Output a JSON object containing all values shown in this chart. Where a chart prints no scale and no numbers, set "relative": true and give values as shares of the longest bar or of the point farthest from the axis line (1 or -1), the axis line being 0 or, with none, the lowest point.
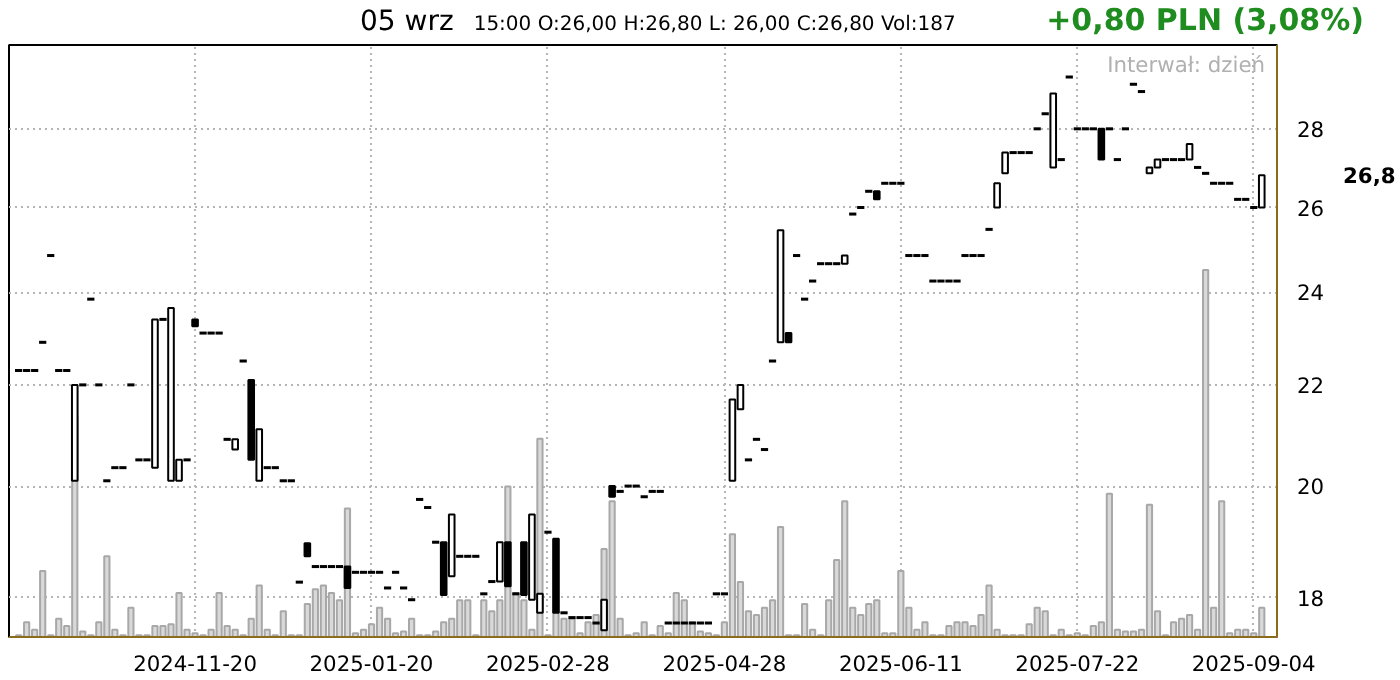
{
  "chart_data": [
    {
      "type": "candlestick",
      "categories": [
        null,
        null,
        null,
        null,
        null,
        null,
        null,
        null,
        null,
        null,
        null,
        null,
        null,
        null,
        null,
        null,
        null,
        null,
        null,
        null,
        null,
        null,
        "2024-11-20",
        null,
        null,
        null,
        null,
        null,
        null,
        null,
        null,
        null,
        null,
        null,
        null,
        null,
        null,
        null,
        null,
        null,
        null,
        null,
        null,
        null,
        "2025-01-20",
        null,
        null,
        null,
        null,
        null,
        null,
        null,
        null,
        null,
        null,
        null,
        null,
        null,
        null,
        null,
        null,
        null,
        null,
        null,
        null,
        null,
        "2025-02-28",
        null,
        null,
        null,
        null,
        null,
        null,
        null,
        null,
        null,
        null,
        null,
        null,
        null,
        null,
        null,
        null,
        null,
        null,
        null,
        null,
        null,
        "2025-04-28",
        null,
        null,
        null,
        null,
        null,
        null,
        null,
        null,
        null,
        null,
        null,
        null,
        null,
        null,
        null,
        null,
        null,
        null,
        null,
        null,
        null,
        "2025-06-11",
        null,
        null,
        null,
        null,
        null,
        null,
        null,
        null,
        null,
        null,
        null,
        null,
        null,
        null,
        null,
        null,
        null,
        null,
        null,
        null,
        null,
        "2025-07-22",
        null,
        null,
        null,
        null,
        null,
        null,
        null,
        null,
        null,
        null,
        null,
        null,
        null,
        null,
        null,
        null,
        null,
        null,
        null,
        null,
        null,
        "2025-09-04",
        null
      ],
      "ohlc": [
        [
          22.3,
          22.3,
          22.3,
          22.3
        ],
        [
          22.3,
          22.3,
          22.3,
          22.3
        ],
        [
          22.3,
          22.3,
          22.3,
          22.3
        ],
        [
          22.9,
          22.9,
          22.9,
          22.9
        ],
        [
          24.85,
          24.85,
          24.85,
          24.85
        ],
        [
          22.3,
          22.3,
          22.3,
          22.3
        ],
        [
          22.3,
          22.3,
          22.3,
          22.3
        ],
        [
          20.1,
          22.0,
          20.1,
          22.0
        ],
        [
          22.0,
          22.0,
          22.0,
          22.0
        ],
        [
          23.85,
          23.85,
          23.85,
          23.85
        ],
        [
          22.0,
          22.0,
          22.0,
          22.0
        ],
        [
          20.1,
          20.1,
          20.1,
          20.1
        ],
        [
          20.35,
          20.35,
          20.35,
          20.35
        ],
        [
          20.35,
          20.35,
          20.35,
          20.35
        ],
        [
          22.0,
          22.0,
          22.0,
          22.0
        ],
        [
          20.5,
          20.5,
          20.5,
          20.5
        ],
        [
          20.5,
          20.5,
          20.5,
          20.5
        ],
        [
          20.35,
          23.4,
          20.35,
          23.4
        ],
        [
          23.4,
          23.4,
          23.4,
          23.4
        ],
        [
          20.1,
          23.65,
          20.1,
          23.65
        ],
        [
          20.1,
          20.5,
          20.1,
          20.5
        ],
        [
          20.5,
          20.5,
          20.5,
          20.5
        ],
        [
          23.4,
          23.4,
          23.25,
          23.25
        ],
        [
          23.1,
          23.1,
          23.1,
          23.1
        ],
        [
          23.1,
          23.1,
          23.1,
          23.1
        ],
        [
          23.1,
          23.1,
          23.1,
          23.1
        ],
        [
          20.9,
          20.9,
          20.9,
          20.9
        ],
        [
          20.7,
          20.9,
          20.7,
          20.9
        ],
        [
          22.5,
          22.5,
          22.5,
          22.5
        ],
        [
          22.1,
          22.1,
          20.5,
          20.5
        ],
        [
          20.1,
          21.1,
          20.1,
          21.1
        ],
        [
          20.35,
          20.35,
          20.35,
          20.35
        ],
        [
          20.35,
          20.35,
          20.35,
          20.35
        ],
        [
          20.1,
          20.1,
          20.1,
          20.1
        ],
        [
          20.1,
          20.1,
          20.1,
          20.1
        ],
        [
          18.27,
          18.27,
          18.27,
          18.27
        ],
        [
          18.95,
          18.95,
          18.72,
          18.72
        ],
        [
          18.54,
          18.54,
          18.54,
          18.54
        ],
        [
          18.54,
          18.54,
          18.54,
          18.54
        ],
        [
          18.54,
          18.54,
          18.54,
          18.54
        ],
        [
          18.54,
          18.54,
          18.54,
          18.54
        ],
        [
          18.54,
          18.54,
          18.17,
          18.17
        ],
        [
          18.44,
          18.44,
          18.44,
          18.44
        ],
        [
          18.44,
          18.44,
          18.44,
          18.44
        ],
        [
          18.44,
          18.44,
          18.44,
          18.44
        ],
        [
          18.44,
          18.44,
          18.44,
          18.44
        ],
        [
          18.17,
          18.17,
          18.17,
          18.17
        ],
        [
          18.44,
          18.44,
          18.44,
          18.44
        ],
        [
          18.17,
          18.17,
          18.17,
          18.17
        ],
        [
          17.97,
          17.97,
          17.97,
          17.97
        ],
        [
          19.75,
          19.75,
          19.75,
          19.75
        ],
        [
          19.6,
          19.6,
          19.6,
          19.6
        ],
        [
          18.97,
          18.97,
          18.97,
          18.97
        ],
        [
          18.97,
          18.97,
          18.05,
          18.05
        ],
        [
          18.37,
          19.47,
          18.37,
          19.47
        ],
        [
          18.72,
          18.72,
          18.72,
          18.72
        ],
        [
          18.72,
          18.72,
          18.72,
          18.72
        ],
        [
          18.72,
          18.72,
          18.72,
          18.72
        ],
        [
          18.07,
          18.07,
          18.07,
          18.07
        ],
        [
          18.28,
          18.28,
          18.28,
          18.28
        ],
        [
          18.28,
          18.97,
          18.28,
          18.97
        ],
        [
          18.97,
          18.97,
          18.2,
          18.2
        ],
        [
          18.07,
          18.07,
          18.07,
          18.07
        ],
        [
          18.97,
          18.97,
          18.05,
          18.05
        ],
        [
          17.97,
          19.47,
          17.97,
          19.47
        ],
        [
          17.75,
          18.07,
          17.75,
          18.07
        ],
        [
          19.15,
          19.15,
          19.15,
          19.15
        ],
        [
          19.03,
          19.03,
          17.75,
          17.75
        ],
        [
          17.75,
          17.75,
          17.75,
          17.75
        ],
        [
          17.67,
          17.67,
          17.67,
          17.67
        ],
        [
          17.67,
          17.67,
          17.67,
          17.67
        ],
        [
          17.67,
          17.67,
          17.67,
          17.67
        ],
        [
          17.58,
          17.58,
          17.58,
          17.58
        ],
        [
          17.46,
          17.97,
          17.46,
          17.97
        ],
        [
          20.0,
          20.0,
          19.8,
          19.8
        ],
        [
          19.9,
          19.9,
          19.9,
          19.9
        ],
        [
          20.0,
          20.0,
          20.0,
          20.0
        ],
        [
          20.0,
          20.0,
          20.0,
          20.0
        ],
        [
          19.8,
          19.8,
          19.8,
          19.8
        ],
        [
          19.9,
          19.9,
          19.9,
          19.9
        ],
        [
          19.9,
          19.9,
          19.9,
          19.9
        ],
        [
          17.58,
          17.58,
          17.58,
          17.58
        ],
        [
          17.58,
          17.58,
          17.58,
          17.58
        ],
        [
          17.58,
          17.58,
          17.58,
          17.58
        ],
        [
          17.58,
          17.58,
          17.58,
          17.58
        ],
        [
          17.58,
          17.58,
          17.58,
          17.58
        ],
        [
          17.58,
          17.58,
          17.58,
          17.58
        ],
        [
          18.07,
          18.07,
          18.07,
          18.07
        ],
        [
          18.07,
          18.07,
          18.07,
          18.07
        ],
        [
          20.1,
          21.7,
          20.1,
          21.7
        ],
        [
          21.5,
          22.0,
          21.5,
          22.0
        ],
        [
          20.5,
          20.5,
          20.5,
          20.5
        ],
        [
          20.9,
          20.9,
          20.9,
          20.9
        ],
        [
          20.7,
          20.7,
          20.7,
          20.7
        ],
        [
          22.5,
          22.5,
          22.5,
          22.5
        ],
        [
          22.9,
          25.45,
          22.9,
          25.45
        ],
        [
          23.1,
          23.1,
          22.9,
          22.9
        ],
        [
          24.85,
          24.85,
          24.85,
          24.85
        ],
        [
          23.85,
          23.85,
          23.85,
          23.85
        ],
        [
          24.26,
          24.26,
          24.26,
          24.26
        ],
        [
          24.66,
          24.66,
          24.66,
          24.66
        ],
        [
          24.66,
          24.66,
          24.66,
          24.66
        ],
        [
          24.66,
          24.66,
          24.66,
          24.66
        ],
        [
          24.66,
          24.85,
          24.66,
          24.85
        ],
        [
          25.84,
          25.84,
          25.84,
          25.84
        ],
        [
          26.0,
          26.0,
          26.0,
          26.0
        ],
        [
          26.4,
          26.4,
          26.4,
          26.4
        ],
        [
          26.4,
          26.4,
          26.2,
          26.2
        ],
        [
          26.6,
          26.6,
          26.6,
          26.6
        ],
        [
          26.6,
          26.6,
          26.6,
          26.6
        ],
        [
          26.6,
          26.6,
          26.6,
          26.6
        ],
        [
          24.85,
          24.85,
          24.85,
          24.85
        ],
        [
          24.85,
          24.85,
          24.85,
          24.85
        ],
        [
          24.85,
          24.85,
          24.85,
          24.85
        ],
        [
          24.26,
          24.26,
          24.26,
          24.26
        ],
        [
          24.26,
          24.26,
          24.26,
          24.26
        ],
        [
          24.26,
          24.26,
          24.26,
          24.26
        ],
        [
          24.26,
          24.26,
          24.26,
          24.26
        ],
        [
          24.85,
          24.85,
          24.85,
          24.85
        ],
        [
          24.85,
          24.85,
          24.85,
          24.85
        ],
        [
          24.85,
          24.85,
          24.85,
          24.85
        ],
        [
          25.47,
          25.47,
          25.47,
          25.47
        ],
        [
          26.0,
          26.6,
          26.0,
          26.6
        ],
        [
          26.85,
          27.38,
          26.85,
          27.38
        ],
        [
          27.38,
          27.38,
          27.38,
          27.38
        ],
        [
          27.38,
          27.38,
          27.38,
          27.38
        ],
        [
          27.38,
          27.38,
          27.38,
          27.38
        ],
        [
          28.0,
          28.0,
          28.0,
          28.0
        ],
        [
          28.4,
          28.4,
          28.4,
          28.4
        ],
        [
          27.0,
          28.95,
          27.0,
          28.95
        ],
        [
          27.2,
          27.2,
          27.2,
          27.2
        ],
        [
          29.4,
          29.4,
          29.4,
          29.4
        ],
        [
          28.0,
          28.0,
          28.0,
          28.0
        ],
        [
          28.0,
          28.0,
          28.0,
          28.0
        ],
        [
          28.0,
          28.0,
          28.0,
          28.0
        ],
        [
          28.0,
          28.0,
          27.2,
          27.2
        ],
        [
          28.0,
          28.0,
          28.0,
          28.0
        ],
        [
          27.2,
          27.2,
          27.2,
          27.2
        ],
        [
          28.0,
          28.0,
          28.0,
          28.0
        ],
        [
          29.2,
          29.2,
          29.2,
          29.2
        ],
        [
          29.0,
          29.0,
          29.0,
          29.0
        ],
        [
          26.85,
          27.0,
          26.85,
          27.0
        ],
        [
          27.0,
          27.2,
          27.0,
          27.2
        ],
        [
          27.2,
          27.2,
          27.2,
          27.2
        ],
        [
          27.2,
          27.2,
          27.2,
          27.2
        ],
        [
          27.2,
          27.2,
          27.2,
          27.2
        ],
        [
          27.2,
          27.6,
          27.2,
          27.6
        ],
        [
          27.0,
          27.0,
          27.0,
          27.0
        ],
        [
          26.85,
          26.85,
          26.85,
          26.85
        ],
        [
          26.6,
          26.6,
          26.6,
          26.6
        ],
        [
          26.6,
          26.6,
          26.6,
          26.6
        ],
        [
          26.6,
          26.6,
          26.6,
          26.6
        ],
        [
          26.2,
          26.2,
          26.2,
          26.2
        ],
        [
          26.2,
          26.2,
          26.2,
          26.2
        ],
        [
          26.0,
          26.0,
          26.0,
          26.0
        ],
        [
          26.0,
          26.8,
          26.0,
          26.8
        ]
      ],
      "log": true,
      "ylim": [
        17.35,
        30.3
      ],
      "yticks": [
        18,
        20,
        22,
        24,
        26,
        28
      ],
      "grid": true,
      "annotations": [
        "05 wrz",
        "15:00  O:26,00  H:26,80  L: 26,00  C:26,80  Vol:187",
        "+0,80 PLN (3,08%)",
        "Interwał: dzień",
        "26,8"
      ]
    },
    {
      "type": "bar",
      "relative": true,
      "color": "#d9d9d9",
      "categories": [
        null,
        null,
        null,
        null,
        null,
        null,
        null,
        null,
        null,
        null,
        null,
        null,
        null,
        null,
        null,
        null,
        null,
        null,
        null,
        null,
        null,
        null,
        null,
        null,
        null,
        null,
        null,
        null,
        null,
        null,
        null,
        null,
        null,
        null,
        null,
        null,
        null,
        null,
        null,
        null,
        null,
        null,
        null,
        null,
        null,
        null,
        null,
        null,
        null,
        null,
        null,
        null,
        null,
        null,
        null,
        null,
        null,
        null,
        null,
        null,
        null,
        null,
        null,
        null,
        null,
        null,
        null,
        null,
        null,
        null,
        null,
        null,
        null,
        null,
        null,
        null,
        null,
        null,
        null,
        null,
        null,
        null,
        null,
        null,
        null,
        null,
        null,
        null,
        null,
        null,
        null,
        null,
        null,
        null,
        null,
        null,
        null,
        null,
        null,
        null,
        null,
        null,
        null,
        null,
        null,
        null,
        null,
        null,
        null,
        null,
        null,
        null,
        null,
        null,
        null,
        null,
        null,
        null,
        null,
        null,
        null,
        null,
        null,
        null,
        null,
        null,
        null,
        null,
        null,
        null,
        null,
        null,
        null,
        null,
        null,
        null,
        null,
        null,
        null,
        null,
        null,
        null,
        null,
        null,
        null,
        null,
        null,
        null,
        null,
        null,
        null,
        null,
        null,
        null,
        null,
        null
      ],
      "values": [
        0.005,
        0.04,
        0.02,
        0.18,
        0.005,
        0.05,
        0.03,
        0.6,
        0.015,
        0.005,
        0.04,
        0.22,
        0.02,
        0.005,
        0.08,
        0.005,
        0.005,
        0.03,
        0.03,
        0.035,
        0.12,
        0.02,
        0.01,
        0.005,
        0.02,
        0.12,
        0.03,
        0.02,
        0.005,
        0.05,
        0.14,
        0.02,
        0.005,
        0.07,
        0.005,
        0.005,
        0.09,
        0.13,
        0.14,
        0.12,
        0.1,
        0.35,
        0.01,
        0.02,
        0.035,
        0.08,
        0.05,
        0.01,
        0.015,
        0.05,
        0.005,
        0.005,
        0.015,
        0.04,
        0.05,
        0.1,
        0.1,
        0.005,
        0.1,
        0.07,
        0.1,
        0.41,
        0.12,
        0.1,
        0.02,
        0.54,
        0.005,
        0.07,
        0.05,
        0.05,
        0.01,
        0.04,
        0.06,
        0.24,
        0.37,
        0.05,
        0.005,
        0.01,
        0.04,
        0.005,
        0.03,
        0.01,
        0.12,
        0.1,
        0.04,
        0.015,
        0.01,
        0.005,
        0.04,
        0.28,
        0.15,
        0.07,
        0.06,
        0.08,
        0.1,
        0.3,
        0.005,
        0.005,
        0.09,
        0.02,
        0.005,
        0.1,
        0.21,
        0.37,
        0.08,
        0.06,
        0.09,
        0.1,
        0.01,
        0.01,
        0.18,
        0.08,
        0.02,
        0.04,
        0.005,
        0.005,
        0.03,
        0.04,
        0.04,
        0.03,
        0.06,
        0.14,
        0.02,
        0.005,
        0.005,
        0.005,
        0.035,
        0.08,
        0.07,
        0.005,
        0.02,
        0.005,
        0.01,
        0.005,
        0.03,
        0.04,
        0.39,
        0.02,
        0.015,
        0.015,
        0.02,
        0.36,
        0.07,
        0.005,
        0.04,
        0.05,
        0.06,
        0.02,
        1,
        0.08,
        0.37,
        0.01,
        0.02,
        0.02,
        0.01,
        0.08
      ]
    }
  ]
}
